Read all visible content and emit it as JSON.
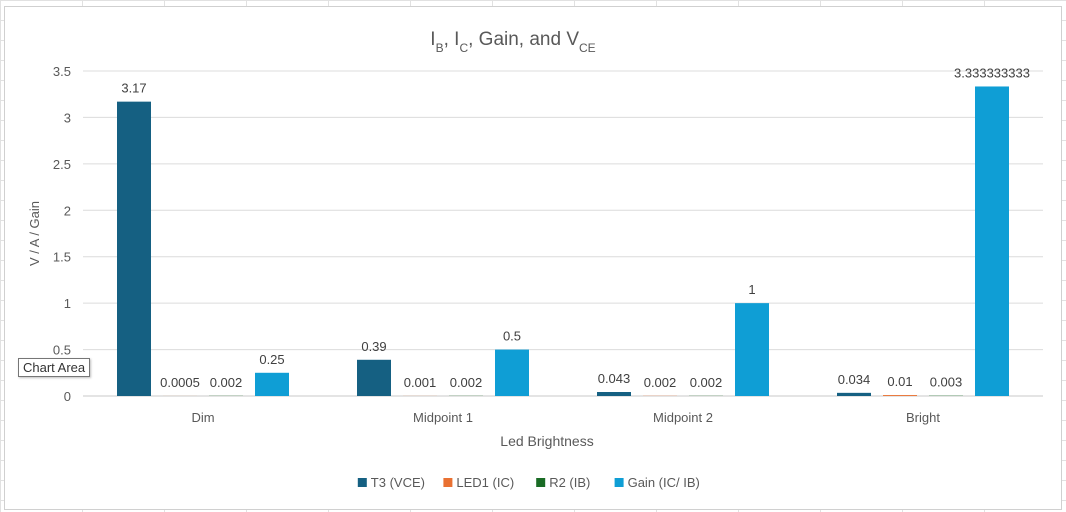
{
  "chart_data": {
    "type": "bar",
    "title": {
      "parts": [
        {
          "text": "I",
          "sub": false
        },
        {
          "text": "B",
          "sub": true
        },
        {
          "text": ", I",
          "sub": false
        },
        {
          "text": "C",
          "sub": true
        },
        {
          "text": ", Gain, and V",
          "sub": false
        },
        {
          "text": "CE",
          "sub": true
        }
      ]
    },
    "xlabel": "Led Brightness",
    "ylabel": "V / A / Gain",
    "ylim": [
      0,
      3.5
    ],
    "yticks": [
      "0",
      "0.5",
      "1",
      "1.5",
      "2",
      "2.5",
      "3",
      "3.5"
    ],
    "grid": true,
    "legend_position": "bottom",
    "categories": [
      "Dim",
      "Midpoint 1",
      "Midpoint 2",
      "Bright"
    ],
    "series": [
      {
        "name": "T3 (VCE)",
        "color": "#156082",
        "values": [
          3.17,
          0.39,
          0.043,
          0.034
        ],
        "labels": [
          "3.17",
          "0.39",
          "0.043",
          "0.034"
        ]
      },
      {
        "name": "LED1 (IC)",
        "color": "#E97132",
        "values": [
          0.0005,
          0.001,
          0.002,
          0.01
        ],
        "labels": [
          "0.0005",
          "0.001",
          "0.002",
          "0.01"
        ]
      },
      {
        "name": "R2 (IB)",
        "color": "#196B24",
        "values": [
          0.002,
          0.002,
          0.002,
          0.003
        ],
        "labels": [
          "0.002",
          "0.002",
          "0.002",
          "0.003"
        ]
      },
      {
        "name": "Gain (IC/ IB)",
        "color": "#0F9ED5",
        "values": [
          0.25,
          0.5,
          1,
          3.333333333
        ],
        "labels": [
          "0.25",
          "0.5",
          "1",
          "3.333333333"
        ]
      }
    ]
  },
  "tooltip": "Chart Area"
}
